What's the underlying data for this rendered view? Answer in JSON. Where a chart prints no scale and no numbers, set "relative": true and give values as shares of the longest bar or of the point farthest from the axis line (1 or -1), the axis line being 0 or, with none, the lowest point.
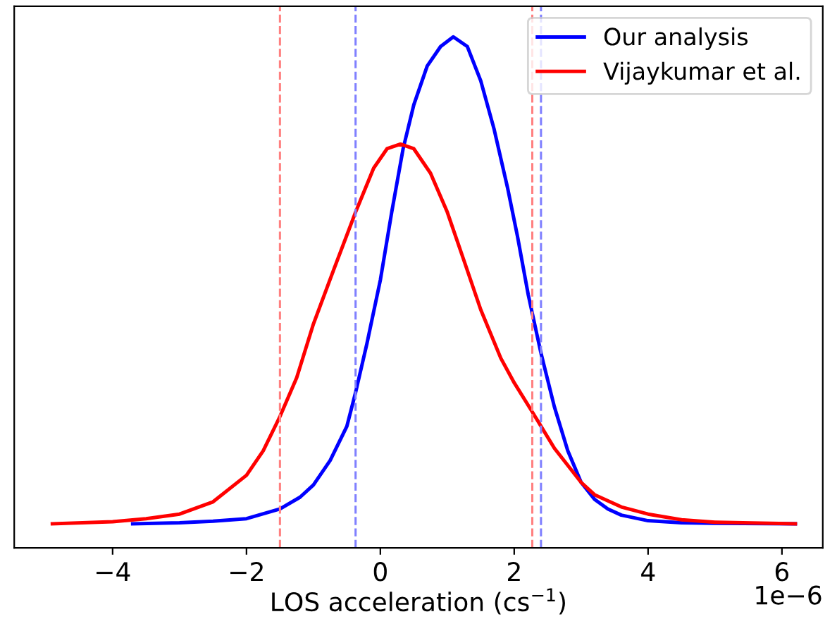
{
  "chart_data": {
    "type": "line",
    "xlabel": "LOS acceleration (cs$^{−1}$)",
    "relative": true,
    "legend": "top right",
    "grid": false,
    "tick_labels": "x",
    "line_style": "solid",
    "marker": "none",
    "xlim": [
      -5.47,
      6.61
    ],
    "xticks": [
      {
        "value": -4,
        "label": "−4"
      },
      {
        "value": -2,
        "label": "−2"
      },
      0,
      2,
      4,
      6
    ],
    "annotations": [
      "1e−6"
    ],
    "series": [
      {
        "name": "Our analysis",
        "color": "#0000ff",
        "x": [
          -3.7,
          -3,
          -2.5,
          -2,
          -1.5,
          -1.2,
          -1,
          -0.75,
          -0.5,
          -0.37,
          -0.2,
          0,
          0.17,
          0.34,
          0.5,
          0.7,
          0.9,
          1.09,
          1.3,
          1.5,
          1.7,
          1.9,
          2.05,
          2.21,
          2.4,
          2.6,
          2.8,
          3.0,
          3.2,
          3.4,
          3.6,
          4,
          4.5,
          5,
          6.2
        ],
        "values": [
          0.047,
          0.049,
          0.052,
          0.057,
          0.076,
          0.099,
          0.123,
          0.171,
          0.238,
          0.304,
          0.4,
          0.524,
          0.657,
          0.781,
          0.867,
          0.943,
          0.981,
          1.0,
          0.981,
          0.914,
          0.819,
          0.705,
          0.609,
          0.495,
          0.381,
          0.276,
          0.19,
          0.128,
          0.095,
          0.076,
          0.064,
          0.053,
          0.049,
          0.048,
          0.047
        ]
      },
      {
        "name": "Vijaykumar et al.",
        "color": "#ff0000",
        "x": [
          -4.9,
          -4,
          -3.5,
          -3,
          -2.5,
          -2,
          -1.75,
          -1.5,
          -1.25,
          -1,
          -0.7,
          -0.37,
          -0.1,
          0.1,
          0.3,
          0.5,
          0.75,
          1.0,
          1.25,
          1.5,
          1.8,
          2.0,
          2.27,
          2.6,
          3.0,
          3.2,
          3.6,
          4,
          4.5,
          5,
          6.2
        ],
        "values": [
          0.047,
          0.051,
          0.057,
          0.066,
          0.09,
          0.142,
          0.19,
          0.257,
          0.333,
          0.438,
          0.543,
          0.657,
          0.743,
          0.781,
          0.79,
          0.781,
          0.733,
          0.657,
          0.562,
          0.466,
          0.371,
          0.323,
          0.266,
          0.195,
          0.128,
          0.104,
          0.08,
          0.066,
          0.055,
          0.05,
          0.047
        ]
      }
    ],
    "ref_lines": [
      {
        "axis": "x",
        "value": -1.5,
        "color": "#ff8080",
        "line_style": "dashed"
      },
      {
        "axis": "x",
        "value": 2.27,
        "color": "#ff8080",
        "line_style": "dashed"
      },
      {
        "axis": "x",
        "value": -0.37,
        "color": "#8080ff",
        "line_style": "dashed"
      },
      {
        "axis": "x",
        "value": 2.4,
        "color": "#8080ff",
        "line_style": "dashed"
      }
    ]
  }
}
